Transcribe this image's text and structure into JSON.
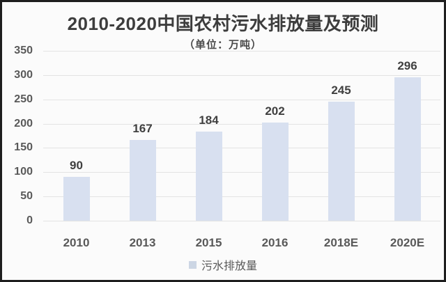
{
  "frame": {
    "background": "#fbfbfb",
    "border_color": "#1e1e1e"
  },
  "chart_data": {
    "type": "bar",
    "title": "2010-2020中国农村污水排放量及预测",
    "subtitle": "（单位：万吨）",
    "unit": "万吨",
    "categories": [
      "2010",
      "2013",
      "2015",
      "2016",
      "2018E",
      "2020E"
    ],
    "values": [
      90,
      167,
      184,
      202,
      245,
      296
    ],
    "series_name": "污水排放量",
    "ylim": [
      0,
      350
    ],
    "yticks": [
      0,
      50,
      100,
      150,
      200,
      250,
      300,
      350
    ],
    "grid": true,
    "legend_position": "bottom",
    "colors": {
      "bar": "#d8e0f0",
      "legend_swatch": "#ccd6e4",
      "gridline": "#e3e3e3",
      "axis_text": "#595959",
      "data_label": "#404040",
      "title_text": "#3d3d3d",
      "subtitle_text": "#4a4a4a"
    }
  }
}
